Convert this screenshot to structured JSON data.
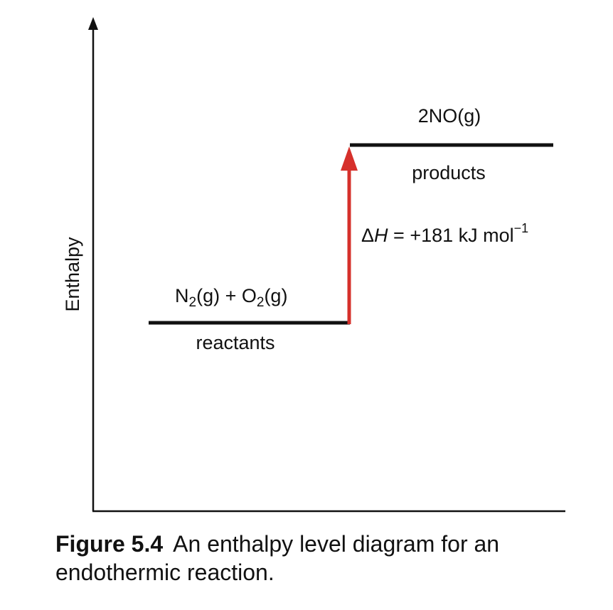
{
  "axis": {
    "y_label": "Enthalpy"
  },
  "reactants": {
    "formula_n": "N",
    "formula_sub1": "2",
    "formula_mid": "(g) + O",
    "formula_sub2": "2",
    "formula_end": "(g)",
    "label": "reactants"
  },
  "products": {
    "formula": "2NO(g)",
    "label": "products"
  },
  "delta_h": {
    "symbol": "Δ",
    "variable": "H",
    "value": " = +181 kJ mol",
    "exponent": "−1"
  },
  "caption": {
    "figure_number": "Figure 5.4",
    "text": "An enthalpy level diagram for an endothermic reaction."
  },
  "colors": {
    "arrow": "#d6302b",
    "lines": "#111111"
  }
}
